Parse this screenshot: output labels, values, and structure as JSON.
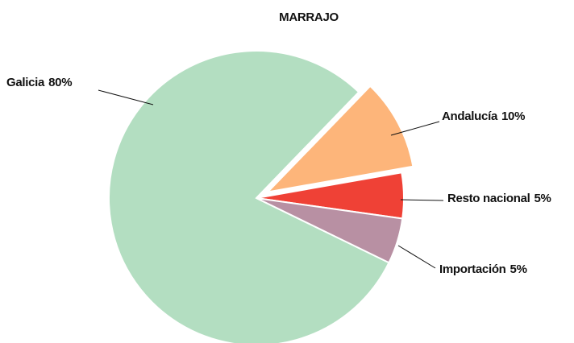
{
  "chart_data": {
    "type": "pie",
    "title": "MARRAJO",
    "categories": [
      "Galicia",
      "Andalucía",
      "Resto nacional",
      "Importación"
    ],
    "values": [
      80,
      10,
      5,
      5
    ],
    "value_labels": [
      "80%",
      "10%",
      "5%",
      "5%"
    ],
    "colors": [
      "#b3dec1",
      "#fdb57a",
      "#ef4136",
      "#b890a3"
    ],
    "exploded": [
      false,
      true,
      false,
      false
    ]
  }
}
